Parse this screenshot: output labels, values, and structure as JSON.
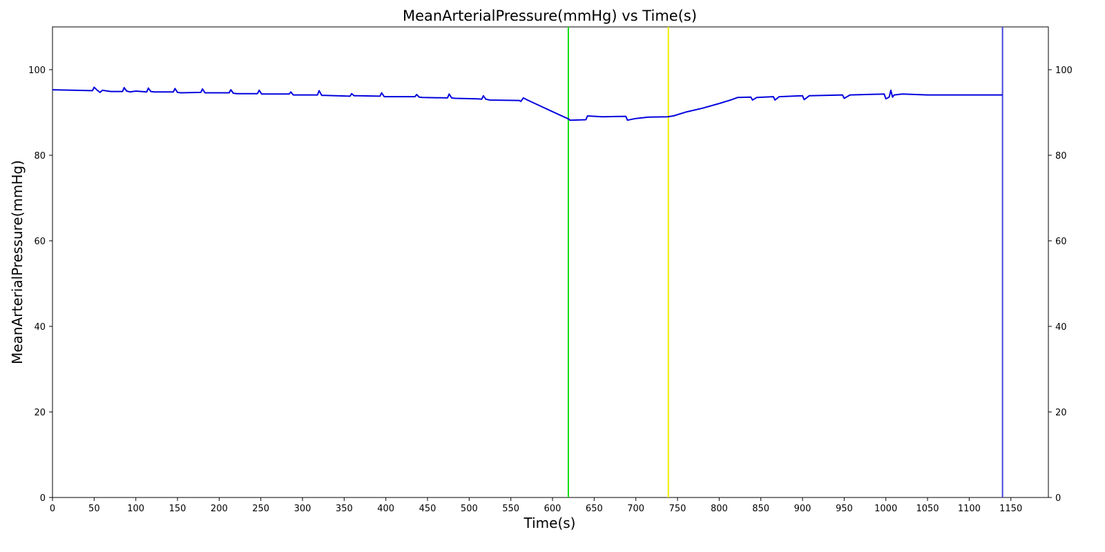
{
  "chart_data": {
    "type": "line",
    "title": "MeanArterialPressure(mmHg) vs Time(s)",
    "xlabel": "Time(s)",
    "ylabel": "MeanArterialPressure(mmHg)",
    "xlim": [
      0,
      1195
    ],
    "ylim": [
      0,
      110
    ],
    "xticks": [
      0,
      50,
      100,
      150,
      200,
      250,
      300,
      350,
      400,
      450,
      500,
      550,
      600,
      650,
      700,
      750,
      800,
      850,
      900,
      950,
      1000,
      1050,
      1100,
      1150
    ],
    "yticks": [
      0,
      20,
      40,
      60,
      80,
      100
    ],
    "right_yticks": true,
    "grid": false,
    "series": [
      {
        "color": "#0000dd",
        "x": [
          0,
          48,
          50,
          53,
          57,
          60,
          63,
          70,
          84,
          86,
          89,
          93,
          100,
          113,
          115,
          118,
          122,
          145,
          147,
          150,
          154,
          178,
          180,
          183,
          187,
          212,
          214,
          217,
          221,
          246,
          248,
          251,
          255,
          284,
          286,
          289,
          293,
          318,
          320,
          323,
          327,
          357,
          359,
          362,
          366,
          393,
          395,
          398,
          402,
          435,
          437,
          440,
          444,
          474,
          476,
          479,
          483,
          510,
          515,
          517,
          520,
          525,
          560,
          562,
          565,
          570,
          580,
          600,
          619,
          621,
          640,
          642,
          660,
          688,
          690,
          700,
          715,
          738,
          745,
          760,
          780,
          800,
          815,
          822,
          838,
          840,
          845,
          865,
          867,
          872,
          900,
          902,
          908,
          948,
          950,
          957,
          998,
          1000,
          1004,
          1006,
          1008,
          1010,
          1020,
          1050,
          1140
        ],
        "y": [
          95.3,
          95.1,
          95.9,
          95.3,
          94.7,
          95.2,
          95.1,
          94.9,
          94.9,
          95.8,
          95.0,
          94.8,
          95.0,
          94.8,
          95.7,
          94.9,
          94.8,
          94.8,
          95.6,
          94.7,
          94.6,
          94.7,
          95.5,
          94.6,
          94.6,
          94.6,
          95.3,
          94.5,
          94.4,
          94.4,
          95.2,
          94.3,
          94.3,
          94.3,
          94.8,
          94.1,
          94.1,
          94.1,
          95.1,
          94.0,
          94.0,
          93.8,
          94.4,
          93.9,
          93.9,
          93.8,
          94.6,
          93.7,
          93.7,
          93.7,
          94.2,
          93.6,
          93.5,
          93.4,
          94.3,
          93.4,
          93.3,
          93.2,
          93.1,
          93.9,
          93.1,
          92.9,
          92.8,
          92.6,
          93.4,
          92.9,
          92.0,
          90.2,
          88.5,
          88.2,
          88.3,
          89.2,
          89.0,
          89.1,
          88.2,
          88.6,
          88.9,
          89.0,
          89.2,
          90.1,
          91.0,
          92.1,
          93.0,
          93.5,
          93.6,
          92.9,
          93.5,
          93.7,
          92.9,
          93.7,
          93.9,
          93.0,
          93.9,
          94.1,
          93.3,
          94.1,
          94.3,
          93.2,
          93.6,
          95.2,
          93.6,
          94.1,
          94.3,
          94.1,
          94.1
        ]
      }
    ],
    "vlines": [
      {
        "x": 619,
        "color": "#00dd00"
      },
      {
        "x": 739,
        "color": "#eeee00"
      },
      {
        "x": 1140,
        "color": "#4444dd"
      }
    ]
  }
}
